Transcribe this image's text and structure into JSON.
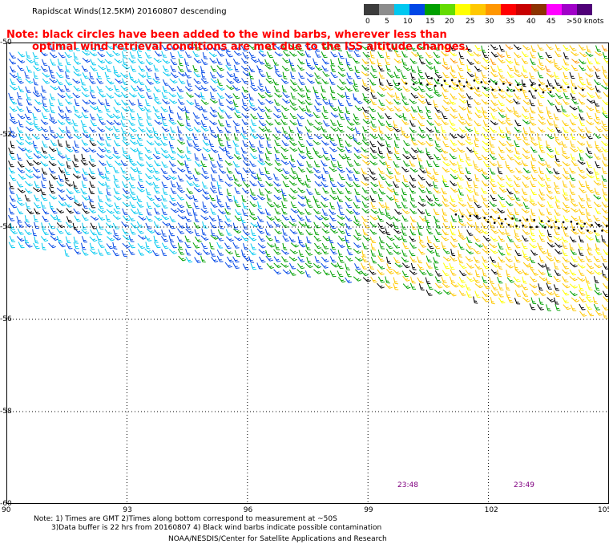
{
  "title": "Rapidscat Winds(12.5KM) 20160807 descending",
  "note_line1": "Note: black circles have been added to the wind barbs, wherever less than",
  "note_line2": "optimal wind retrieval conditions are met due to the ISS altitude changes.",
  "legend": {
    "labels": [
      "0",
      "5",
      "10",
      "15",
      "20",
      "25",
      "30",
      "35",
      "40",
      "45",
      ">50 knots"
    ],
    "colors": [
      "#3c3c3c",
      "#8c8c8c",
      "#00c8f0",
      "#0046e6",
      "#00a000",
      "#64dc00",
      "#ffff00",
      "#ffc800",
      "#ff9600",
      "#ff0000",
      "#c80000",
      "#8c3200",
      "#ff00ff",
      "#a000c8",
      "#500078"
    ]
  },
  "axes": {
    "y_ticks": [
      "-50",
      "-52",
      "-54",
      "-56",
      "-58",
      "-60"
    ],
    "x_ticks": [
      "90",
      "93",
      "96",
      "99",
      "102",
      "105"
    ]
  },
  "times": [
    "23:48",
    "23:49"
  ],
  "footer": {
    "line1": "Note: 1) Times are GMT 2)Times along bottom correspond to measurement at ~50S",
    "line2": "3)Data buffer is 22 hrs from 20160807 4) Black wind barbs indicate possible contamination",
    "line3": "NOAA/NESDIS/Center for Satellite Applications and Research"
  },
  "colors": {
    "note": "#ff0000",
    "time_label": "#800080",
    "grid": "#000000"
  }
}
